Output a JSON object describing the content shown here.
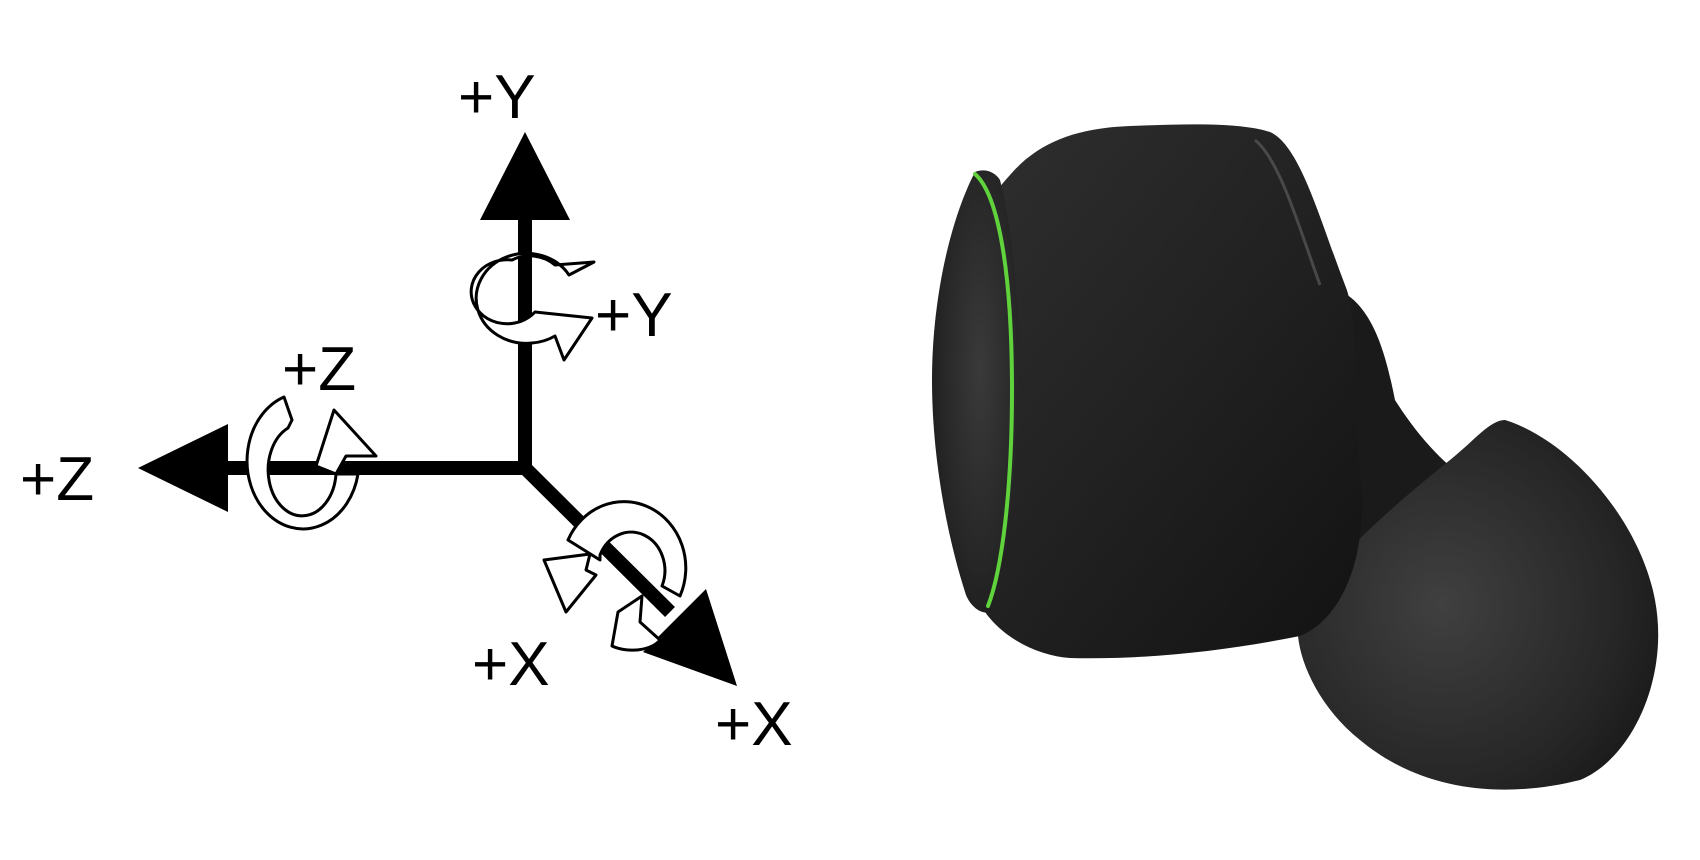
{
  "diagram": {
    "labels": {
      "y_translation": "+Y",
      "y_rotation": "+Y",
      "z_rotation": "+Z",
      "z_translation": "+Z",
      "x_rotation": "+X",
      "x_translation": "+X"
    },
    "colors": {
      "axis": "#000000",
      "rotation_arrow_fill": "#ffffff",
      "rotation_arrow_stroke": "#000000",
      "earbud_body": "#262626",
      "led_ring": "#5fd23c"
    },
    "icons": {
      "earbud": "earbud-icon"
    }
  }
}
